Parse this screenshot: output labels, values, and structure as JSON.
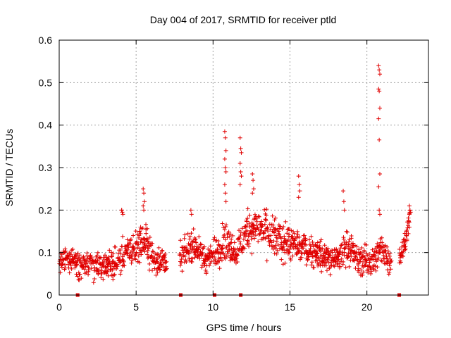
{
  "chart_data": {
    "type": "scatter",
    "title": "Day 004 of 2017, SRMTID for receiver ptld",
    "xlabel": "GPS time / hours",
    "ylabel": "SRMTID / TECUs",
    "xlim": [
      0,
      24
    ],
    "ylim": [
      0,
      0.6
    ],
    "xticks": [
      0,
      5,
      10,
      15,
      20
    ],
    "xtick_labels": [
      "0",
      "5",
      "10",
      "15",
      "20"
    ],
    "yticks": [
      0,
      0.1,
      0.2,
      0.3,
      0.4,
      0.5,
      0.6
    ],
    "ytick_labels": [
      "0",
      "0.1",
      "0.2",
      "0.3",
      "0.4",
      "0.5",
      "0.6"
    ],
    "grid": true,
    "marker": "+",
    "color": "#e00000",
    "series": [
      {
        "name": "SRMTID",
        "trend": [
          {
            "x": 0.0,
            "y": 0.075,
            "spread": 0.03
          },
          {
            "x": 0.7,
            "y": 0.09,
            "spread": 0.03
          },
          {
            "x": 1.2,
            "y": 0.075,
            "spread": 0.04
          },
          {
            "x": 2.0,
            "y": 0.07,
            "spread": 0.035
          },
          {
            "x": 3.0,
            "y": 0.065,
            "spread": 0.03
          },
          {
            "x": 3.8,
            "y": 0.08,
            "spread": 0.035
          },
          {
            "x": 4.2,
            "y": 0.1,
            "spread": 0.04
          },
          {
            "x": 5.0,
            "y": 0.11,
            "spread": 0.04
          },
          {
            "x": 5.6,
            "y": 0.13,
            "spread": 0.045
          },
          {
            "x": 6.2,
            "y": 0.08,
            "spread": 0.035
          },
          {
            "x": 7.0,
            "y": 0.08,
            "spread": 0.03
          },
          {
            "x": 7.9,
            "y": 0.09,
            "spread": 0.035
          },
          {
            "x": 8.6,
            "y": 0.12,
            "spread": 0.04
          },
          {
            "x": 9.5,
            "y": 0.08,
            "spread": 0.035
          },
          {
            "x": 10.2,
            "y": 0.1,
            "spread": 0.035
          },
          {
            "x": 10.8,
            "y": 0.13,
            "spread": 0.05
          },
          {
            "x": 11.5,
            "y": 0.1,
            "spread": 0.035
          },
          {
            "x": 12.2,
            "y": 0.15,
            "spread": 0.05
          },
          {
            "x": 13.0,
            "y": 0.16,
            "spread": 0.05
          },
          {
            "x": 14.0,
            "y": 0.13,
            "spread": 0.05
          },
          {
            "x": 15.0,
            "y": 0.12,
            "spread": 0.045
          },
          {
            "x": 16.0,
            "y": 0.11,
            "spread": 0.04
          },
          {
            "x": 17.0,
            "y": 0.09,
            "spread": 0.035
          },
          {
            "x": 18.0,
            "y": 0.08,
            "spread": 0.035
          },
          {
            "x": 18.6,
            "y": 0.12,
            "spread": 0.045
          },
          {
            "x": 19.5,
            "y": 0.08,
            "spread": 0.035
          },
          {
            "x": 20.4,
            "y": 0.08,
            "spread": 0.035
          },
          {
            "x": 21.0,
            "y": 0.11,
            "spread": 0.045
          },
          {
            "x": 21.4,
            "y": 0.08,
            "spread": 0.03
          },
          {
            "x": 22.3,
            "y": 0.1,
            "spread": 0.035
          },
          {
            "x": 22.8,
            "y": 0.18,
            "spread": 0.03
          }
        ],
        "gaps": [
          [
            7.0,
            7.8
          ],
          [
            21.6,
            22.1
          ]
        ],
        "spikes": [
          {
            "x": 4.1,
            "values": [
              0.2,
              0.195,
              0.19,
              0.2
            ]
          },
          {
            "x": 5.5,
            "values": [
              0.25,
              0.24,
              0.22,
              0.21,
              0.2
            ]
          },
          {
            "x": 8.6,
            "values": [
              0.2,
              0.19
            ]
          },
          {
            "x": 10.8,
            "values": [
              0.385,
              0.37,
              0.34,
              0.32,
              0.3,
              0.29,
              0.26,
              0.24,
              0.22
            ]
          },
          {
            "x": 11.8,
            "values": [
              0.37,
              0.345,
              0.335,
              0.31,
              0.29,
              0.28,
              0.26
            ]
          },
          {
            "x": 12.6,
            "values": [
              0.285,
              0.27,
              0.25,
              0.24
            ]
          },
          {
            "x": 15.6,
            "values": [
              0.28,
              0.26,
              0.245,
              0.23
            ]
          },
          {
            "x": 18.5,
            "values": [
              0.245,
              0.22,
              0.2
            ]
          },
          {
            "x": 20.8,
            "values": [
              0.54,
              0.53,
              0.52,
              0.485,
              0.48,
              0.44,
              0.415,
              0.365,
              0.285,
              0.255,
              0.2,
              0.19
            ]
          },
          {
            "x": 22.8,
            "values": [
              0.21,
              0.2,
              0.195,
              0.19
            ]
          }
        ],
        "zero_points_x": [
          1.2,
          7.9,
          10.1,
          11.8,
          22.1
        ]
      }
    ]
  }
}
